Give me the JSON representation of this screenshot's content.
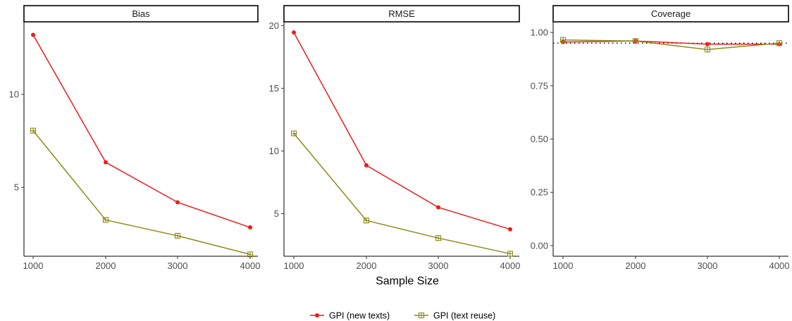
{
  "colors": {
    "new_texts": "#ee1c1c",
    "text_reuse": "#8c8c1a",
    "reference_line": "#000000"
  },
  "xlabel": "Sample Size",
  "legend": {
    "position": "bottom",
    "items": [
      {
        "label": "GPI (new texts)",
        "color": "#ee1c1c",
        "marker": "circle"
      },
      {
        "label": "GPI (text reuse)",
        "color": "#8c8c1a",
        "marker": "square-cross"
      }
    ]
  },
  "chart_data": [
    {
      "type": "line",
      "title": "Bias",
      "x": [
        1000,
        2000,
        3000,
        4000
      ],
      "x_ticks": [
        "1000",
        "2000",
        "3000",
        "4000"
      ],
      "y_ticks": [
        5,
        10
      ],
      "y_tick_labels": [
        "5",
        "10"
      ],
      "ylim": [
        1.3,
        13.9
      ],
      "series": [
        {
          "name": "GPI (new texts)",
          "values": [
            13.2,
            6.35,
            4.2,
            2.85
          ]
        },
        {
          "name": "GPI (text reuse)",
          "values": [
            8.05,
            3.25,
            2.4,
            1.4
          ]
        }
      ]
    },
    {
      "type": "line",
      "title": "RMSE",
      "x": [
        1000,
        2000,
        3000,
        4000
      ],
      "x_ticks": [
        "1000",
        "2000",
        "3000",
        "4000"
      ],
      "y_ticks": [
        5,
        10,
        15,
        20
      ],
      "y_tick_labels": [
        "5",
        "10",
        "15",
        "20"
      ],
      "ylim": [
        1.6,
        20.3
      ],
      "series": [
        {
          "name": "GPI (new texts)",
          "values": [
            19.45,
            8.85,
            5.5,
            3.75
          ]
        },
        {
          "name": "GPI (text reuse)",
          "values": [
            11.4,
            4.45,
            3.05,
            1.8
          ]
        }
      ]
    },
    {
      "type": "line",
      "title": "Coverage",
      "x": [
        1000,
        2000,
        3000,
        4000
      ],
      "x_ticks": [
        "1000",
        "2000",
        "3000",
        "4000"
      ],
      "y_ticks": [
        0.0,
        0.25,
        0.5,
        0.75,
        1.0
      ],
      "y_tick_labels": [
        "0.00",
        "0.25",
        "0.50",
        "0.75",
        "1.00"
      ],
      "ylim": [
        -0.05,
        1.05
      ],
      "reference_line": 0.95,
      "series": [
        {
          "name": "GPI (new texts)",
          "values": [
            0.955,
            0.96,
            0.945,
            0.945
          ]
        },
        {
          "name": "GPI (text reuse)",
          "values": [
            0.965,
            0.96,
            0.92,
            0.95
          ]
        }
      ]
    }
  ]
}
